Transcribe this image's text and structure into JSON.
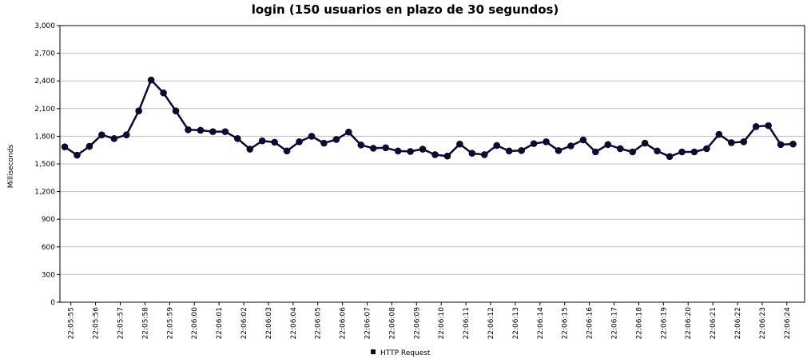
{
  "chart_data": {
    "type": "line",
    "title": "login (150 usuarios en plazo de 30 segundos)",
    "xlabel": "",
    "ylabel": "Milliseconds",
    "ylim": [
      0,
      3000
    ],
    "yticks": [
      0,
      300,
      600,
      900,
      1200,
      1500,
      1800,
      2100,
      2400,
      2700,
      3000
    ],
    "ytick_labels": [
      "0",
      "300",
      "600",
      "900",
      "1,200",
      "1,500",
      "1,800",
      "2,100",
      "2,400",
      "2,700",
      "3,000"
    ],
    "xticks": [
      "22:05:55",
      "22:05:56",
      "22:05:57",
      "22:05:58",
      "22:05:59",
      "22:06:00",
      "22:06:01",
      "22:06:02",
      "22:06:03",
      "22:06:04",
      "22:06:05",
      "22:06:06",
      "22:06:07",
      "22:06:08",
      "22:06:09",
      "22:06:10",
      "22:06:11",
      "22:06:12",
      "22:06:13",
      "22:06:14",
      "22:06:15",
      "22:06:16",
      "22:06:17",
      "22:06:18",
      "22:06:19",
      "22:06:20",
      "22:06:21",
      "22:06:22",
      "22:06:23",
      "22:06:24"
    ],
    "grid": true,
    "legend": "bottom",
    "colors": {
      "series": "#0a0a33",
      "grid": "#c0c0c0",
      "axis": "#000000"
    },
    "series": [
      {
        "name": "HTTP Request",
        "values": [
          1685,
          1595,
          1690,
          1815,
          1775,
          1815,
          2075,
          2410,
          2270,
          2075,
          1870,
          1865,
          1850,
          1850,
          1775,
          1660,
          1750,
          1735,
          1640,
          1740,
          1800,
          1725,
          1765,
          1845,
          1705,
          1670,
          1675,
          1640,
          1635,
          1660,
          1600,
          1585,
          1715,
          1615,
          1600,
          1700,
          1640,
          1645,
          1720,
          1740,
          1645,
          1695,
          1760,
          1630,
          1710,
          1665,
          1630,
          1725,
          1640,
          1580,
          1630,
          1630,
          1665,
          1820,
          1730,
          1740,
          1905,
          1915,
          1710,
          1715
        ]
      }
    ]
  }
}
